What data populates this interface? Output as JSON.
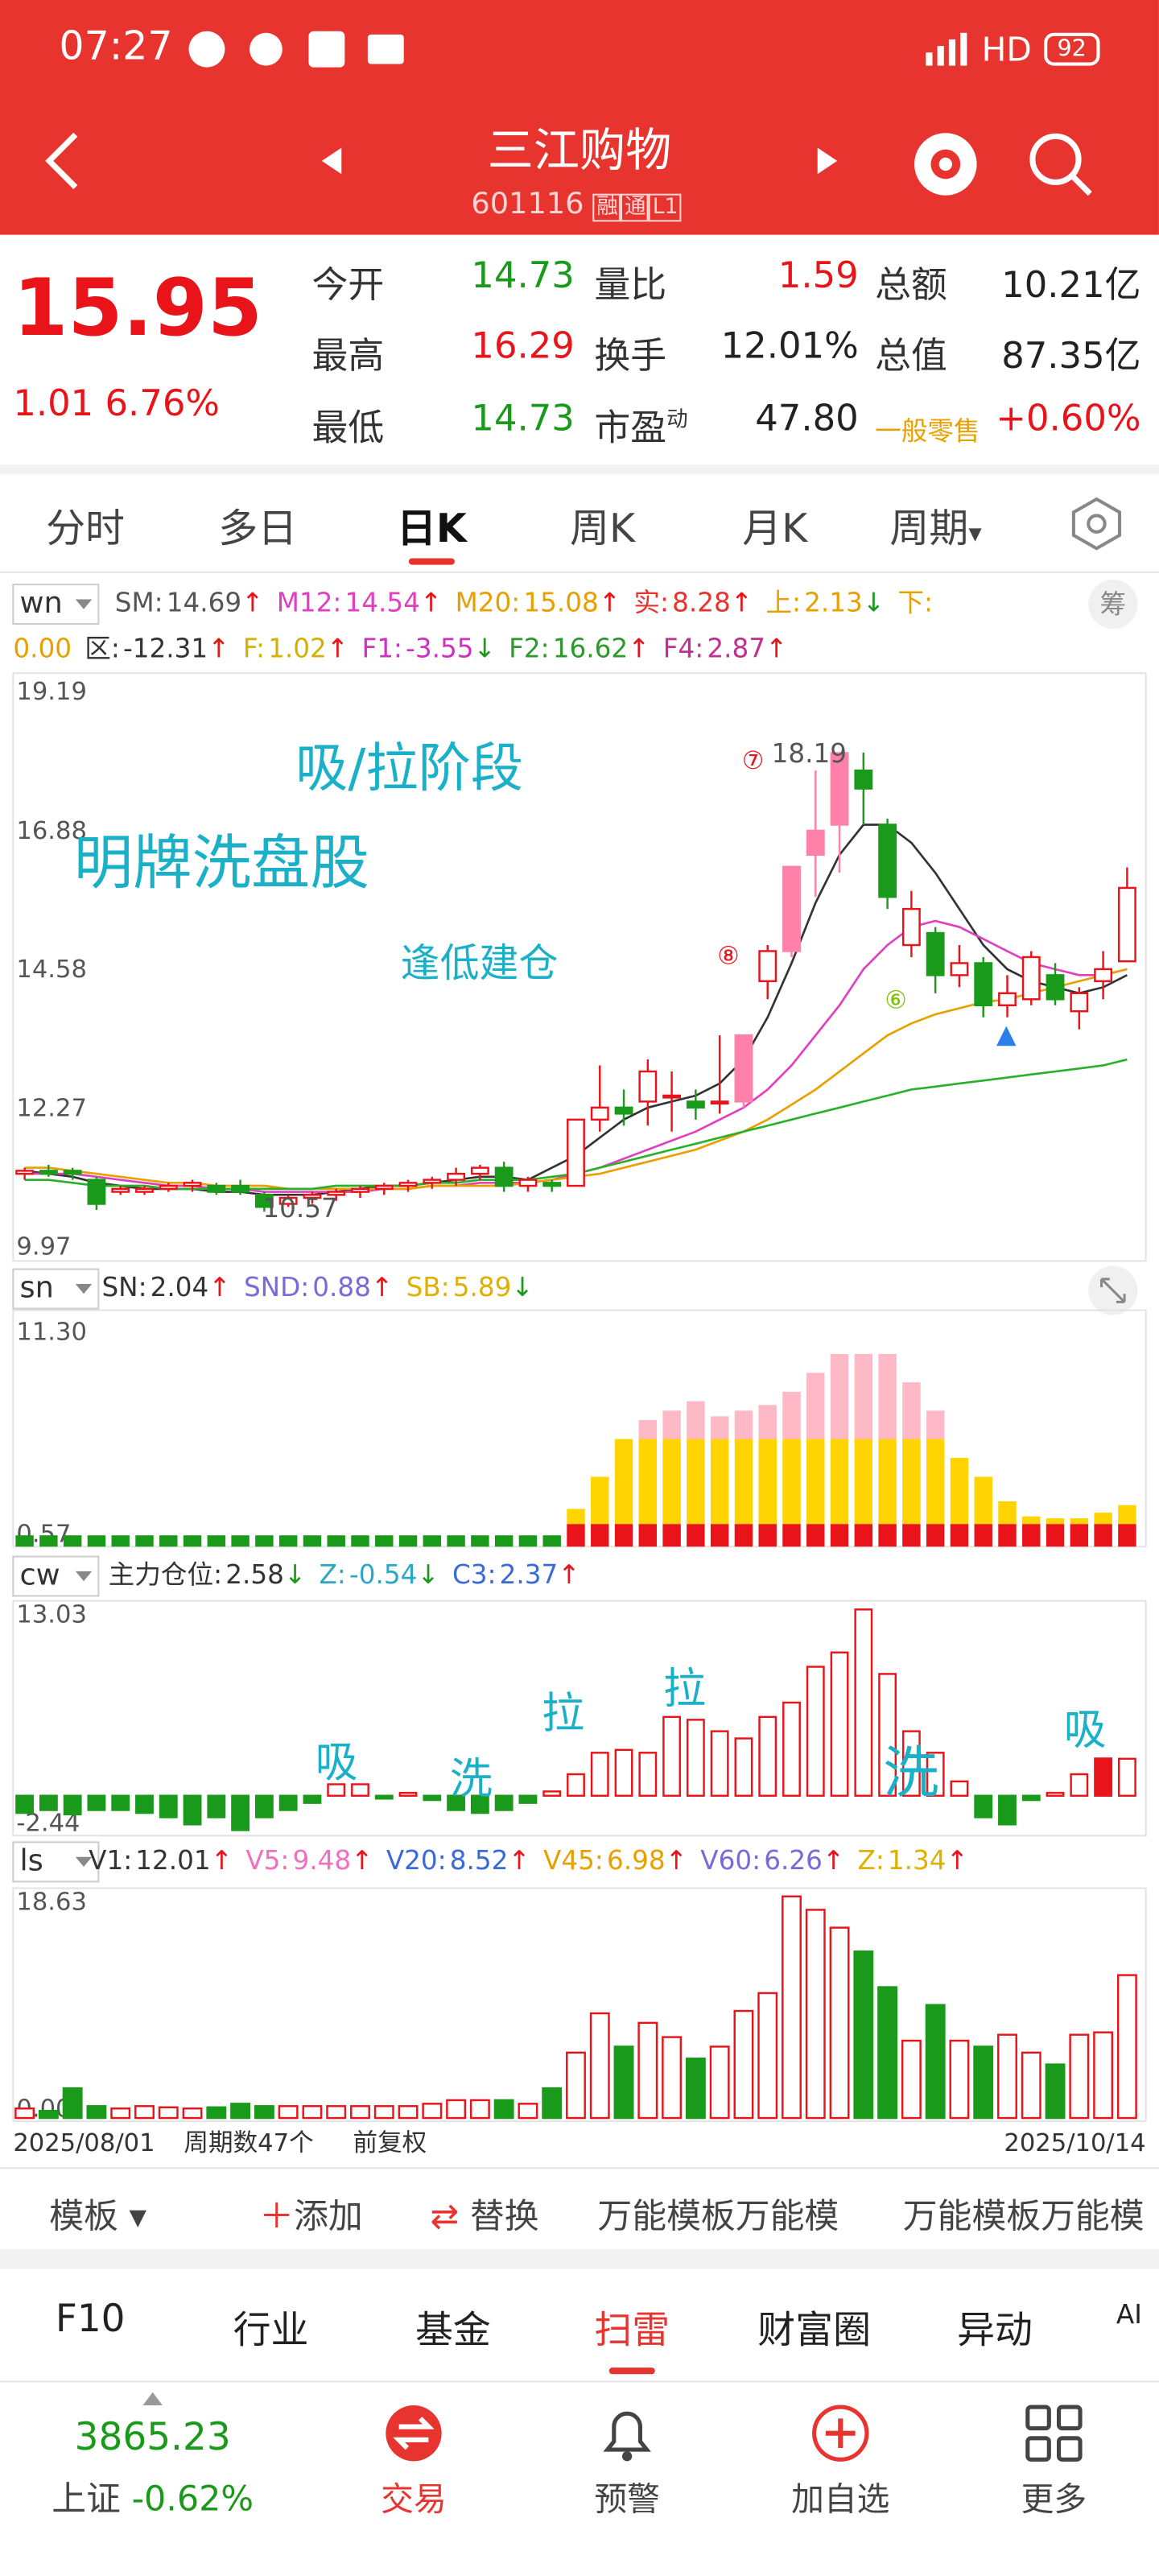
{
  "status": {
    "time": "07:27",
    "network": "HD",
    "battery": "92"
  },
  "header": {
    "title": "三江购物",
    "code": "601116",
    "badges": [
      "融",
      "通",
      "L1"
    ]
  },
  "quote": {
    "price": "15.95",
    "change": "1.01",
    "change_pct": "6.76%",
    "fields": [
      [
        {
          "label": "今开",
          "value": "14.73"
        },
        {
          "label": "量比",
          "value": "1.59"
        },
        {
          "label": "总额",
          "value": "10.21亿"
        }
      ],
      [
        {
          "label": "最高",
          "value": "16.29"
        },
        {
          "label": "换手",
          "value": "12.01%"
        },
        {
          "label": "总值",
          "value": "87.35亿"
        }
      ],
      [
        {
          "label": "最低",
          "value": "14.73"
        },
        {
          "label": "市盈",
          "sup": "动",
          "value": "47.80"
        },
        {
          "label": "一般零售",
          "value": "+0.60%"
        }
      ]
    ]
  },
  "tabs": {
    "items": [
      "分时",
      "多日",
      "日K",
      "周K",
      "月K",
      "周期"
    ],
    "active": 2
  },
  "chart": {
    "main": {
      "key": "wn",
      "button": "筹",
      "legend": [
        [
          {
            "label": "SM:",
            "value": "14.69",
            "arrow": "↑",
            "color": "#555555"
          },
          {
            "label": "M12:",
            "value": "14.54",
            "arrow": "↑",
            "color": "#e040c0"
          },
          {
            "label": "M20:",
            "value": "15.08",
            "arrow": "↑",
            "color": "#e8a000"
          },
          {
            "label": "实:",
            "value": "8.28",
            "arrow": "↑",
            "color": "#e8342f"
          },
          {
            "label": "上:",
            "value": "2.13",
            "arrow": "↓",
            "color": "#e8a000"
          },
          {
            "label": "下:",
            "color": "#e8a000"
          }
        ],
        [
          {
            "value": "0.00",
            "color": "#e8a000"
          },
          {
            "label": "区:",
            "value": "-12.31",
            "arrow": "↑",
            "color": "#333333"
          },
          {
            "label": "F:",
            "value": "1.02",
            "arrow": "↑",
            "color": "#d4b000"
          },
          {
            "label": "F1:",
            "value": "-3.55",
            "arrow": "↓",
            "color": "#d030c0"
          },
          {
            "label": "F2:",
            "value": "16.62",
            "arrow": "↑",
            "color": "#2a9a2a"
          },
          {
            "label": "F4:",
            "value": "2.87",
            "arrow": "↑",
            "color": "#c03090"
          }
        ]
      ],
      "ylim": [
        9.97,
        19.19
      ],
      "yticks": [
        19.19,
        16.88,
        14.58,
        12.27,
        9.97
      ],
      "candles": [
        [
          11.2,
          11.3,
          11.1,
          11.25
        ],
        [
          11.25,
          11.35,
          11.15,
          11.2
        ],
        [
          11.25,
          11.3,
          11.1,
          11.2
        ],
        [
          11.1,
          11.15,
          10.6,
          10.7
        ],
        [
          10.9,
          11.0,
          10.85,
          10.95
        ],
        [
          10.9,
          11.0,
          10.85,
          10.95
        ],
        [
          10.95,
          11.05,
          10.9,
          11.0
        ],
        [
          11.0,
          11.1,
          10.9,
          11.05
        ],
        [
          11.0,
          11.05,
          10.85,
          10.9
        ],
        [
          11.0,
          11.1,
          10.85,
          10.9
        ],
        [
          10.85,
          10.9,
          10.57,
          10.65
        ],
        [
          10.7,
          10.85,
          10.65,
          10.8
        ],
        [
          10.8,
          10.9,
          10.7,
          10.85
        ],
        [
          10.85,
          10.95,
          10.75,
          10.9
        ],
        [
          10.9,
          11.0,
          10.8,
          10.95
        ],
        [
          10.95,
          11.05,
          10.85,
          11.0
        ],
        [
          11.0,
          11.1,
          10.9,
          11.05
        ],
        [
          11.05,
          11.15,
          10.95,
          11.1
        ],
        [
          11.1,
          11.3,
          11.0,
          11.2
        ],
        [
          11.2,
          11.35,
          11.1,
          11.3
        ],
        [
          11.3,
          11.4,
          10.9,
          11.0
        ],
        [
          11.0,
          11.15,
          10.9,
          11.1
        ],
        [
          11.05,
          11.1,
          10.9,
          11.0
        ],
        [
          11.0,
          12.1,
          11.0,
          12.1
        ],
        [
          12.1,
          13.0,
          11.9,
          12.3
        ],
        [
          12.3,
          12.6,
          12.0,
          12.2
        ],
        [
          12.4,
          13.1,
          12.0,
          12.9
        ],
        [
          12.5,
          12.9,
          11.9,
          12.5
        ],
        [
          12.4,
          12.6,
          12.1,
          12.3
        ],
        [
          12.4,
          13.5,
          12.2,
          12.4
        ],
        [
          12.4,
          13.5,
          12.3,
          13.5
        ],
        [
          14.4,
          15.0,
          14.1,
          14.9
        ],
        [
          14.9,
          16.3,
          14.8,
          16.3
        ],
        [
          16.5,
          17.9,
          15.8,
          16.9
        ],
        [
          17.0,
          18.19,
          16.2,
          18.19
        ],
        [
          17.9,
          18.2,
          17.0,
          17.6
        ],
        [
          17.0,
          17.1,
          15.6,
          15.8
        ],
        [
          15.0,
          15.9,
          14.8,
          15.6
        ],
        [
          15.2,
          15.3,
          14.2,
          14.5
        ],
        [
          14.5,
          15.0,
          14.3,
          14.7
        ],
        [
          14.7,
          14.8,
          13.8,
          14.0
        ],
        [
          14.0,
          14.5,
          13.8,
          14.2
        ],
        [
          14.1,
          14.9,
          14.0,
          14.8
        ],
        [
          14.5,
          14.7,
          14.0,
          14.1
        ],
        [
          13.9,
          14.3,
          13.6,
          14.2
        ],
        [
          14.4,
          14.9,
          14.1,
          14.6
        ],
        [
          14.73,
          16.29,
          14.73,
          15.95
        ]
      ],
      "highlight": [
        30,
        32,
        33,
        34
      ],
      "lines": [
        {
          "color": "#333333",
          "values": [
            11.25,
            11.2,
            11.15,
            11.05,
            11.0,
            10.95,
            10.95,
            10.95,
            10.9,
            10.9,
            10.85,
            10.85,
            10.85,
            10.9,
            10.95,
            11.0,
            11.0,
            11.05,
            11.1,
            11.15,
            11.15,
            11.1,
            11.3,
            11.5,
            11.8,
            12.1,
            12.3,
            12.4,
            12.5,
            12.7,
            13.1,
            13.8,
            14.7,
            15.7,
            16.5,
            17.0,
            17.0,
            16.7,
            16.2,
            15.6,
            15.0,
            14.6,
            14.4,
            14.3,
            14.2,
            14.3,
            14.5
          ]
        },
        {
          "color": "#e040c0",
          "values": [
            11.2,
            11.2,
            11.2,
            11.15,
            11.1,
            11.05,
            11.0,
            11.0,
            10.95,
            10.95,
            10.9,
            10.9,
            10.9,
            10.9,
            10.9,
            10.95,
            10.95,
            11.0,
            11.0,
            11.05,
            11.05,
            11.05,
            11.1,
            11.2,
            11.3,
            11.45,
            11.6,
            11.75,
            11.9,
            12.1,
            12.3,
            12.6,
            13.0,
            13.5,
            14.0,
            14.6,
            15.0,
            15.3,
            15.4,
            15.3,
            15.1,
            14.9,
            14.7,
            14.6,
            14.5,
            14.5,
            14.6
          ]
        },
        {
          "color": "#e8a000",
          "values": [
            11.3,
            11.3,
            11.25,
            11.2,
            11.15,
            11.1,
            11.05,
            11.05,
            11.0,
            11.0,
            11.0,
            10.95,
            10.95,
            10.95,
            10.95,
            10.95,
            10.95,
            11.0,
            11.0,
            11.0,
            11.0,
            11.05,
            11.1,
            11.15,
            11.2,
            11.3,
            11.4,
            11.5,
            11.6,
            11.75,
            11.9,
            12.1,
            12.35,
            12.6,
            12.9,
            13.2,
            13.5,
            13.7,
            13.85,
            13.95,
            14.05,
            14.1,
            14.2,
            14.3,
            14.4,
            14.5,
            14.6
          ]
        },
        {
          "color": "#2ab02a",
          "values": [
            11.1,
            11.1,
            11.05,
            11.0,
            11.0,
            11.0,
            10.95,
            10.95,
            10.95,
            10.95,
            10.95,
            10.95,
            10.95,
            11.0,
            11.0,
            11.0,
            11.0,
            11.05,
            11.05,
            11.1,
            11.1,
            11.1,
            11.15,
            11.2,
            11.3,
            11.4,
            11.5,
            11.6,
            11.7,
            11.8,
            11.9,
            12.0,
            12.1,
            12.2,
            12.3,
            12.4,
            12.5,
            12.6,
            12.65,
            12.7,
            12.75,
            12.8,
            12.85,
            12.9,
            12.95,
            13.0,
            13.1
          ]
        }
      ],
      "annotations": [
        {
          "text": "吸/拉阶段",
          "color": "#1ab0c8"
        },
        {
          "text": "明牌洗盘股",
          "color": "#1ab0c8"
        },
        {
          "text": "逢低建仓",
          "color": "#1ab0c8"
        },
        {
          "text": "18.19",
          "color": "#555555"
        },
        {
          "text": "10.57",
          "color": "#555555"
        },
        {
          "text": "⑦",
          "color": "#e8141a"
        },
        {
          "text": "⑧",
          "color": "#e8141a"
        },
        {
          "text": "⑥",
          "color": "#7ac000"
        }
      ]
    },
    "sn": {
      "key": "sn",
      "legend": [
        {
          "label": "SN:",
          "value": "2.04",
          "arrow": "↑",
          "color": "#333333"
        },
        {
          "label": "SND:",
          "value": "0.88",
          "arrow": "↑",
          "color": "#7a6ad8"
        },
        {
          "label": "SB:",
          "value": "5.89",
          "arrow": "↓",
          "color": "#e0b000"
        }
      ],
      "ylim": [
        0,
        11.3
      ],
      "yticks": [
        {
          "value": 11.3,
          "label": "11.30"
        },
        0.57
      ],
      "stack": [
        {
          "color": "#1a9a1a",
          "values": [
            0.6,
            0.6,
            0.6,
            0.6,
            0.6,
            0.6,
            0.6,
            0.6,
            0.6,
            0.6,
            0.6,
            0.6,
            0.6,
            0.6,
            0.6,
            0.6,
            0.6,
            0.6,
            0.6,
            0.6,
            0.6,
            0.6,
            0.6,
            0,
            0,
            0,
            0,
            0,
            0,
            0,
            0,
            0,
            0,
            0,
            0,
            0,
            0,
            0,
            0,
            0,
            0,
            0,
            0,
            0,
            0,
            0,
            0
          ]
        },
        {
          "color": "#e8141a",
          "values": [
            0,
            0,
            0,
            0,
            0,
            0,
            0,
            0,
            0,
            0,
            0,
            0,
            0,
            0,
            0,
            0,
            0,
            0,
            0,
            0,
            0,
            0,
            0,
            1.2,
            1.2,
            1.2,
            1.2,
            1.2,
            1.2,
            1.2,
            1.2,
            1.2,
            1.2,
            1.2,
            1.2,
            1.2,
            1.2,
            1.2,
            1.2,
            1.2,
            1.2,
            1.2,
            1.2,
            1.2,
            1.2,
            1.2,
            1.2
          ]
        },
        {
          "color": "#ffd400",
          "values": [
            0,
            0,
            0,
            0,
            0,
            0,
            0,
            0,
            0,
            0,
            0,
            0,
            0,
            0,
            0,
            0,
            0,
            0,
            0,
            0,
            0,
            0,
            0,
            0.8,
            2.5,
            4.5,
            4.5,
            4.5,
            4.5,
            4.5,
            4.5,
            4.5,
            4.5,
            4.5,
            4.5,
            4.5,
            4.5,
            4.5,
            4.5,
            3.5,
            2.5,
            1.2,
            0.4,
            0.3,
            0.3,
            0.6,
            1.0
          ]
        },
        {
          "color": "#ffb8c6",
          "values": [
            0,
            0,
            0,
            0,
            0,
            0,
            0,
            0,
            0,
            0,
            0,
            0,
            0,
            0,
            0,
            0,
            0,
            0,
            0,
            0,
            0,
            0,
            0,
            0,
            0,
            0,
            1.0,
            1.5,
            2.0,
            1.2,
            1.5,
            1.8,
            2.5,
            3.5,
            4.5,
            4.5,
            4.5,
            3.0,
            1.5,
            0,
            0,
            0,
            0,
            0,
            0,
            0,
            0
          ]
        }
      ]
    },
    "cw": {
      "key": "cw",
      "legend": [
        {
          "label": "主力仓位:",
          "value": "2.58",
          "arrow": "↓",
          "color": "#333333"
        },
        {
          "label": "Z:",
          "value": "-0.54",
          "arrow": "↓",
          "color": "#2aa8c8"
        },
        {
          "label": "C3:",
          "value": "2.37",
          "arrow": "↑",
          "color": "#3a6ad8"
        }
      ],
      "ylim": [
        -2.44,
        13.03
      ],
      "yticks": [
        13.03,
        -2.44
      ],
      "values": [
        -1.2,
        -1.0,
        -1.3,
        -1.0,
        -1.0,
        -1.2,
        -1.5,
        -2.0,
        -1.5,
        -2.4,
        -1.5,
        -1.0,
        -0.5,
        0.8,
        0.8,
        -0.2,
        0.2,
        -0.3,
        -1.0,
        -1.2,
        -1.0,
        -0.5,
        0.3,
        1.5,
        3.0,
        3.2,
        3.0,
        5.5,
        5.3,
        4.5,
        4.0,
        5.5,
        6.5,
        9.0,
        10.0,
        13.0,
        8.5,
        4.5,
        3.0,
        1.0,
        -1.5,
        -2.0,
        -0.3,
        0.2,
        1.5,
        2.6,
        2.58
      ],
      "filled": [
        45
      ],
      "annotations": [
        {
          "text": "吸"
        },
        {
          "text": "洗"
        },
        {
          "text": "拉"
        },
        {
          "text": "拉"
        },
        {
          "text": "洗"
        },
        {
          "text": "吸"
        }
      ],
      "annotation_color": "#1ab0c8"
    },
    "ls": {
      "key": "ls",
      "legend": [
        {
          "label": "V1:",
          "value": "12.01",
          "arrow": "↑",
          "color": "#333333"
        },
        {
          "label": "V5:",
          "value": "9.48",
          "arrow": "↑",
          "color": "#f070c0"
        },
        {
          "label": "V20:",
          "value": "8.52",
          "arrow": "↑",
          "color": "#3a6ad8"
        },
        {
          "label": "V45:",
          "value": "6.98",
          "arrow": "↑",
          "color": "#e8a000"
        },
        {
          "label": "V60:",
          "value": "6.26",
          "arrow": "↑",
          "color": "#7a6ad8"
        },
        {
          "label": "Z:",
          "value": "1.34",
          "arrow": "↑",
          "color": "#e0b000"
        }
      ],
      "ylim": [
        0,
        18.63
      ],
      "yticks": [
        18.63,
        {
          "value": 0,
          "label": "0.00"
        }
      ],
      "values": [
        0.8,
        0.6,
        2.5,
        1.0,
        0.8,
        1.0,
        0.9,
        0.8,
        0.9,
        1.2,
        1.0,
        1.0,
        1.0,
        1.0,
        1.0,
        1.0,
        1.0,
        1.2,
        1.5,
        1.5,
        1.5,
        1.2,
        2.5,
        5.5,
        8.8,
        6.0,
        8.0,
        6.8,
        5.0,
        6.0,
        9.0,
        10.5,
        18.63,
        17.5,
        16.0,
        14.0,
        11.0,
        6.5,
        9.5,
        6.5,
        6.0,
        7.0,
        5.5,
        4.5,
        7.0,
        7.2,
        12.01
      ]
    },
    "x_labels": [
      "2025/08/01",
      "周期数47个",
      "前复权",
      "2025/10/14"
    ],
    "up_color": "#e8141a",
    "down_color": "#1a9a1a",
    "highlight_color": "#ff80a8"
  },
  "toolbar": {
    "template": "模板",
    "add": "添加",
    "replace": "替换",
    "items": [
      "万能模板万能模",
      "万能模板万能模"
    ]
  },
  "bottom_tabs": {
    "items": [
      "F10",
      "行业",
      "基金",
      "扫雷",
      "财富圈",
      "异动",
      "AI"
    ],
    "active": 3
  },
  "nav": {
    "index_value": "3865.23",
    "index_name": "上证",
    "index_change": "-0.62%",
    "items": [
      "交易",
      "预警",
      "加自选",
      "更多"
    ]
  }
}
